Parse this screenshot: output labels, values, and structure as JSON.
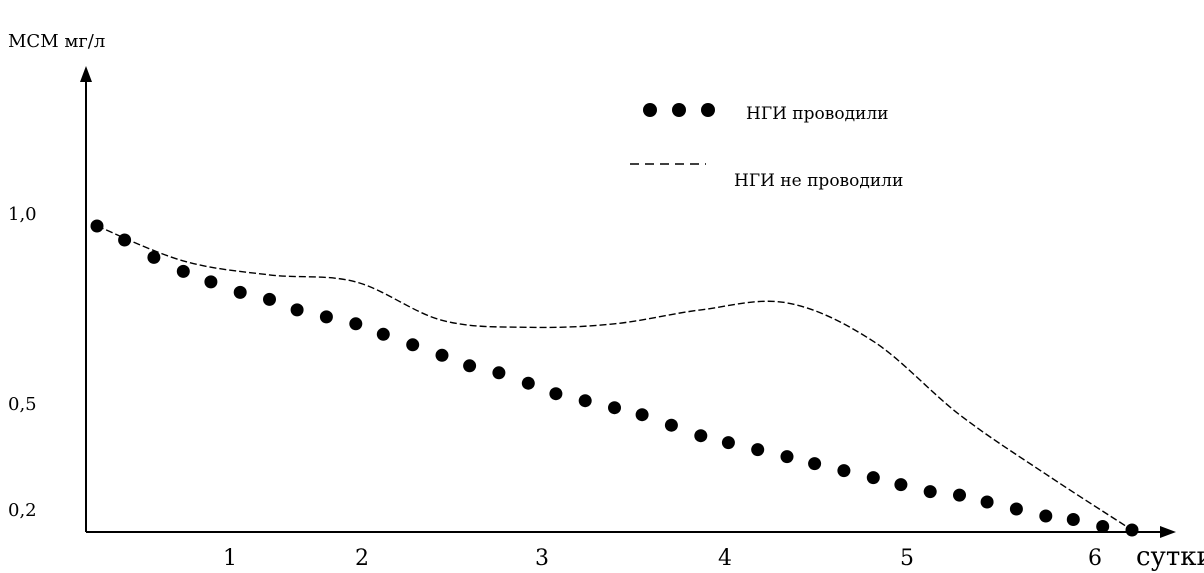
{
  "chart_data": {
    "type": "line",
    "ylabel": "МСМ мг/л",
    "xlabel": "сутки",
    "x_ticks": [
      "1",
      "2",
      "3",
      "4",
      "5",
      "6"
    ],
    "y_ticks": [
      "1,0",
      "0,5",
      "0,2"
    ],
    "legend_placement": "top-right",
    "grid": false,
    "series": [
      {
        "name": "НГИ проводили",
        "style": "dots",
        "color": "#000000",
        "points": [
          [
            0,
            0.96
          ],
          [
            0.16,
            0.92
          ],
          [
            0.33,
            0.87
          ],
          [
            0.5,
            0.83
          ],
          [
            0.66,
            0.8
          ],
          [
            0.83,
            0.77
          ],
          [
            1,
            0.75
          ],
          [
            1.16,
            0.72
          ],
          [
            1.33,
            0.7
          ],
          [
            1.5,
            0.68
          ],
          [
            1.66,
            0.65
          ],
          [
            1.83,
            0.62
          ],
          [
            2,
            0.59
          ],
          [
            2.16,
            0.56
          ],
          [
            2.33,
            0.54
          ],
          [
            2.5,
            0.51
          ],
          [
            2.66,
            0.48
          ],
          [
            2.83,
            0.46
          ],
          [
            3,
            0.44
          ],
          [
            3.16,
            0.42
          ],
          [
            3.33,
            0.39
          ],
          [
            3.5,
            0.36
          ],
          [
            3.66,
            0.34
          ],
          [
            3.83,
            0.32
          ],
          [
            4,
            0.3
          ],
          [
            4.16,
            0.28
          ],
          [
            4.33,
            0.26
          ],
          [
            4.5,
            0.24
          ],
          [
            4.66,
            0.22
          ],
          [
            4.83,
            0.2
          ],
          [
            5,
            0.19
          ],
          [
            5.16,
            0.17
          ],
          [
            5.33,
            0.15
          ],
          [
            5.5,
            0.13
          ],
          [
            5.66,
            0.12
          ],
          [
            5.83,
            0.1
          ],
          [
            6,
            0.09
          ]
        ]
      },
      {
        "name": "НГИ не проводили",
        "style": "dashed",
        "color": "#000000",
        "points": [
          [
            0,
            0.96
          ],
          [
            0.5,
            0.86
          ],
          [
            1,
            0.82
          ],
          [
            1.5,
            0.8
          ],
          [
            2,
            0.69
          ],
          [
            2.5,
            0.67
          ],
          [
            3,
            0.68
          ],
          [
            3.5,
            0.72
          ],
          [
            4,
            0.74
          ],
          [
            4.5,
            0.63
          ],
          [
            5,
            0.42
          ],
          [
            5.5,
            0.25
          ],
          [
            6,
            0.09
          ]
        ]
      }
    ]
  }
}
